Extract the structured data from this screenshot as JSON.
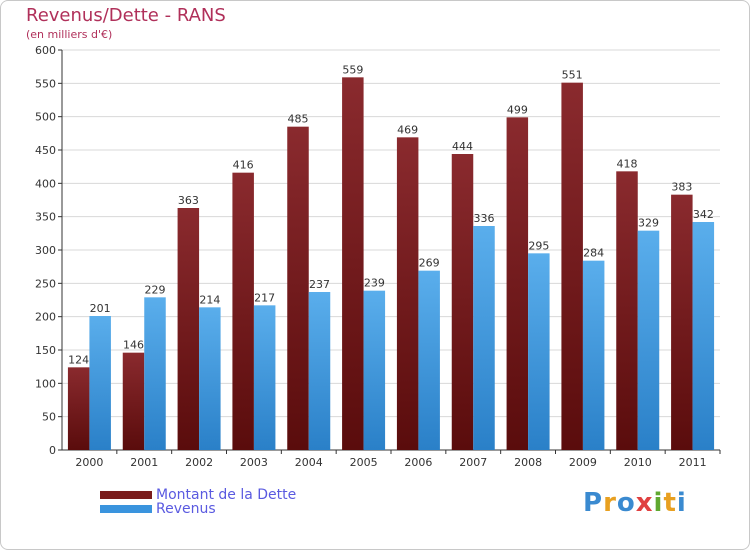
{
  "title": "Revenus/Dette - RANS",
  "subtitle": "(en milliers d'€)",
  "logo": {
    "letters": [
      "P",
      "r",
      "o",
      "x",
      "i",
      "t",
      "i"
    ],
    "colors": [
      "#3a8ad0",
      "#e8a020",
      "#3a8ad0",
      "#e04040",
      "#60a830",
      "#e8a020",
      "#3a8ad0"
    ]
  },
  "colors": {
    "dette": "#7a1c1c",
    "revenus": "#3a94de",
    "grid": "#d8d8d8",
    "axis": "#333333"
  },
  "chart_data": {
    "type": "bar",
    "categories": [
      "2000",
      "2001",
      "2002",
      "2003",
      "2004",
      "2005",
      "2006",
      "2007",
      "2008",
      "2009",
      "2010",
      "2011"
    ],
    "series": [
      {
        "name": "Montant de la Dette",
        "values": [
          124,
          146,
          363,
          416,
          485,
          559,
          469,
          444,
          499,
          551,
          418,
          383
        ]
      },
      {
        "name": "Revenus",
        "values": [
          201,
          229,
          214,
          217,
          237,
          239,
          269,
          336,
          295,
          284,
          329,
          342
        ]
      }
    ],
    "ylim": [
      0,
      600
    ],
    "yticks": [
      0,
      50,
      100,
      150,
      200,
      250,
      300,
      350,
      400,
      450,
      500,
      550,
      600
    ],
    "grid": true,
    "legend_position": "bottom-left"
  }
}
